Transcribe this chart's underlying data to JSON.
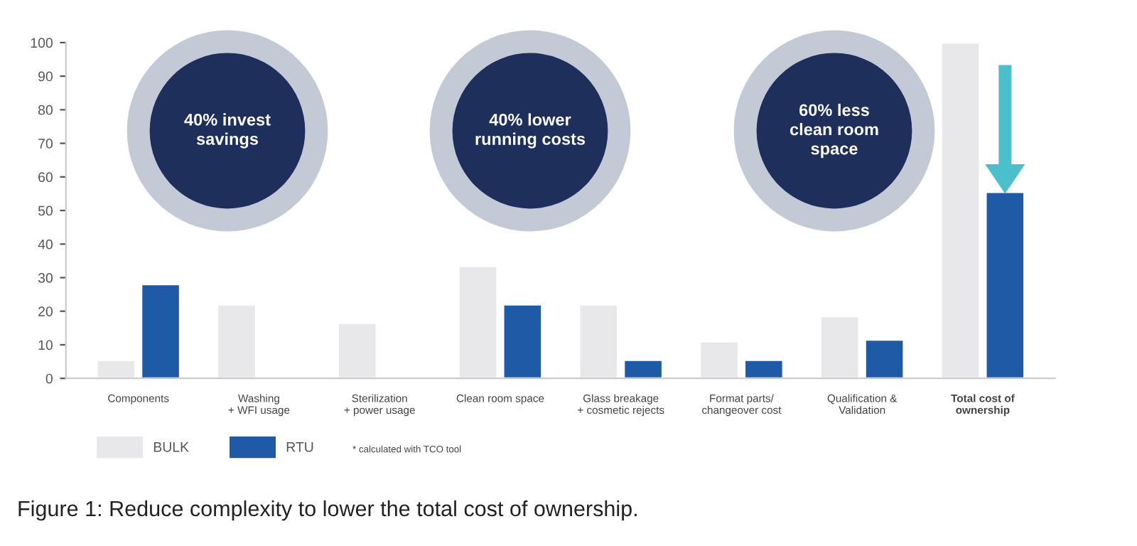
{
  "chart_data": {
    "type": "bar",
    "categories": [
      "Components",
      "Washing\n+ WFI usage",
      "Sterilization\n+ power usage",
      "Clean room space",
      "Glass breakage\n+ cosmetic rejects",
      "Format parts/\nchangeover cost",
      "Qualification &\nValidation",
      "Total cost of\nownership"
    ],
    "series": [
      {
        "name": "BULK",
        "color": "#e8e8ea",
        "values": [
          5.5,
          22,
          16.5,
          33.5,
          22,
          11,
          18.5,
          100
        ]
      },
      {
        "name": "RTU",
        "color": "#1f5aa6",
        "values": [
          28,
          null,
          null,
          22,
          5.5,
          5.5,
          11.5,
          55.5
        ]
      }
    ],
    "ylim": [
      0,
      100
    ],
    "yticks": [
      0,
      10,
      20,
      30,
      40,
      50,
      60,
      70,
      80,
      90,
      100
    ],
    "grid": false,
    "legend": "bottom",
    "annotations": [
      "40% invest\nsavings",
      "40% lower\nrunning costs",
      "60% less\nclean room\nspace",
      "* calculated with TCO tool",
      "Figure 1: Reduce complexity to lower the total cost of ownership."
    ]
  }
}
